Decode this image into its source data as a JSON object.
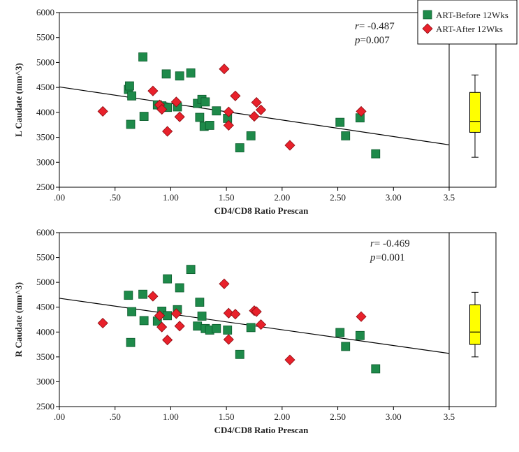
{
  "legend": {
    "items": [
      {
        "label": "ART-Before 12Wks",
        "marker": "square",
        "color": "#1e8a4a"
      },
      {
        "label": "ART-After 12Wks",
        "marker": "diamond",
        "color": "#e8212b"
      }
    ]
  },
  "chart_data": [
    {
      "type": "scatter",
      "xlabel": "CD4/CD8 Ratio Prescan",
      "ylabel": "L Caudate (mm^3)",
      "xticks": [
        ".00",
        ".50",
        "1.00",
        "1.50",
        "2.00",
        "2.50",
        "3.00",
        "3.5"
      ],
      "yticks": [
        "2500",
        "3000",
        "3500",
        "4000",
        "4500",
        "5000",
        "5500",
        "6000"
      ],
      "xlim": [
        0,
        3.5
      ],
      "ylim": [
        2500,
        6000
      ],
      "stat_r_prefix": "r",
      "stat_r_value": "= -0.487",
      "stat_p_prefix": "p",
      "stat_p_value": "=0.007",
      "fit_line": {
        "x": [
          0,
          3.5
        ],
        "y": [
          4510,
          3350
        ]
      },
      "boxplot": {
        "min": 3100,
        "q1": 3600,
        "median": 3820,
        "q3": 4400,
        "max": 4750,
        "ylim": [
          2500,
          6000
        ]
      },
      "series": [
        {
          "name": "ART-Before 12Wks",
          "marker": "square",
          "x": [
            0.62,
            0.63,
            0.64,
            0.65,
            0.75,
            0.76,
            0.88,
            0.92,
            0.96,
            0.97,
            1.06,
            1.08,
            1.18,
            1.24,
            1.26,
            1.28,
            1.3,
            1.31,
            1.35,
            1.41,
            1.51,
            1.62,
            1.72,
            2.52,
            2.57,
            2.7,
            2.84
          ],
          "y": [
            4460,
            4530,
            3760,
            4330,
            5110,
            3920,
            4150,
            4130,
            4770,
            4100,
            4110,
            4730,
            4790,
            4180,
            3900,
            4260,
            3720,
            4210,
            3740,
            4030,
            3880,
            3290,
            3530,
            3800,
            3530,
            3890,
            3170
          ]
        },
        {
          "name": "ART-After 12Wks",
          "marker": "diamond",
          "x": [
            0.39,
            0.84,
            0.9,
            0.92,
            0.97,
            1.05,
            1.08,
            1.48,
            1.52,
            1.52,
            1.58,
            1.75,
            1.77,
            1.81,
            2.07,
            2.71
          ],
          "y": [
            4020,
            4430,
            4150,
            4060,
            3620,
            4210,
            3910,
            4870,
            4010,
            3740,
            4330,
            3920,
            4200,
            4050,
            3340,
            4020
          ]
        }
      ]
    },
    {
      "type": "scatter",
      "xlabel": "CD4/CD8 Ratio Prescan",
      "ylabel": "R Caudate (mm^3)",
      "xticks": [
        ".00",
        ".50",
        "1.00",
        "1.50",
        "2.00",
        "2.50",
        "3.00",
        "3.5"
      ],
      "yticks": [
        "2500",
        "3000",
        "3500",
        "4000",
        "4500",
        "5000",
        "5500",
        "6000"
      ],
      "xlim": [
        0,
        3.5
      ],
      "ylim": [
        2500,
        6000
      ],
      "stat_r_prefix": "r",
      "stat_r_value": "= -0.469",
      "stat_p_prefix": "p",
      "stat_p_value": "=0.001",
      "fit_line": {
        "x": [
          0,
          3.5
        ],
        "y": [
          4680,
          3570
        ]
      },
      "boxplot": {
        "min": 3500,
        "q1": 3750,
        "median": 4000,
        "q3": 4550,
        "max": 4800,
        "ylim": [
          2500,
          6000
        ]
      },
      "series": [
        {
          "name": "ART-Before 12Wks",
          "marker": "square",
          "x": [
            0.62,
            0.64,
            0.65,
            0.75,
            0.76,
            0.88,
            0.92,
            0.97,
            0.97,
            1.06,
            1.08,
            1.18,
            1.24,
            1.26,
            1.28,
            1.31,
            1.35,
            1.41,
            1.51,
            1.62,
            1.72,
            2.52,
            2.57,
            2.7,
            2.84
          ],
          "y": [
            4740,
            3790,
            4410,
            4760,
            4230,
            4220,
            4420,
            5070,
            4330,
            4450,
            4890,
            5260,
            4120,
            4600,
            4320,
            4070,
            4040,
            4070,
            4040,
            3550,
            4090,
            3990,
            3710,
            3930,
            3260
          ]
        },
        {
          "name": "ART-After 12Wks",
          "marker": "diamond",
          "x": [
            0.39,
            0.84,
            0.9,
            0.92,
            0.97,
            1.05,
            1.08,
            1.48,
            1.52,
            1.52,
            1.58,
            1.75,
            1.77,
            1.81,
            2.07,
            2.71
          ],
          "y": [
            4180,
            4720,
            4330,
            4100,
            3840,
            4370,
            4120,
            4970,
            4380,
            3850,
            4360,
            4430,
            4410,
            4150,
            3440,
            4310
          ]
        }
      ]
    }
  ]
}
